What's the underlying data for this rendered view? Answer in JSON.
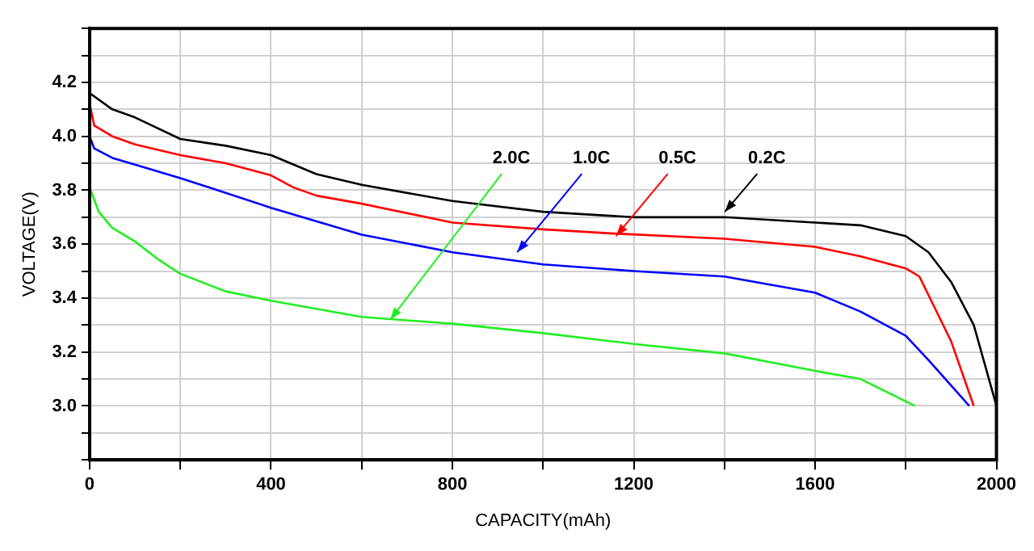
{
  "chart_data": {
    "type": "line",
    "xlabel": "CAPACITY(mAh)",
    "ylabel": "VOLTAGE(V)",
    "xlim": [
      0,
      2000
    ],
    "ylim": [
      2.8,
      4.4
    ],
    "xticks": [
      0,
      {
        "value": 200,
        "label": null
      },
      400,
      {
        "value": 600,
        "label": null
      },
      800,
      {
        "value": 1000,
        "label": null
      },
      1200,
      {
        "value": 1400,
        "label": null
      },
      1600,
      {
        "value": 1800,
        "label": null
      },
      2000
    ],
    "yticks": [
      {
        "value": 2.8,
        "label": null
      },
      {
        "value": 2.9,
        "label": null
      },
      {
        "value": 3.0,
        "label": "3.0"
      },
      {
        "value": 3.1,
        "label": null
      },
      3.2,
      {
        "value": 3.3,
        "label": null
      },
      3.4,
      {
        "value": 3.5,
        "label": null
      },
      3.6,
      {
        "value": 3.7,
        "label": null
      },
      3.8,
      {
        "value": 3.9,
        "label": null
      },
      {
        "value": 4.0,
        "label": "4.0"
      },
      {
        "value": 4.1,
        "label": null
      },
      4.2,
      {
        "value": 4.3,
        "label": null
      },
      {
        "value": 4.4,
        "label": null
      }
    ],
    "grid": true,
    "marker": "none",
    "line_style": "solid",
    "series": [
      {
        "color": "#000000",
        "x": [
          0,
          50,
          100,
          200,
          300,
          400,
          500,
          600,
          800,
          1000,
          1200,
          1400,
          1600,
          1700,
          1800,
          1850,
          1900,
          1950,
          2000
        ],
        "values": [
          4.16,
          4.1,
          4.07,
          3.99,
          3.965,
          3.93,
          3.86,
          3.82,
          3.76,
          3.72,
          3.7,
          3.7,
          3.68,
          3.67,
          3.63,
          3.57,
          3.46,
          3.3,
          3.0
        ]
      },
      {
        "color": "#ff0000",
        "x": [
          0,
          10,
          50,
          100,
          200,
          300,
          400,
          450,
          500,
          600,
          800,
          1000,
          1150,
          1400,
          1600,
          1700,
          1800,
          1830,
          1900,
          1950
        ],
        "values": [
          4.12,
          4.04,
          4.0,
          3.97,
          3.93,
          3.9,
          3.855,
          3.81,
          3.78,
          3.75,
          3.68,
          3.655,
          3.64,
          3.62,
          3.59,
          3.555,
          3.51,
          3.48,
          3.24,
          3.0
        ]
      },
      {
        "color": "#0000ff",
        "x": [
          0,
          10,
          50,
          100,
          200,
          400,
          600,
          800,
          1000,
          1200,
          1400,
          1600,
          1700,
          1800,
          1850,
          1940
        ],
        "values": [
          4.0,
          3.955,
          3.92,
          3.895,
          3.845,
          3.735,
          3.635,
          3.57,
          3.525,
          3.5,
          3.48,
          3.42,
          3.35,
          3.26,
          3.17,
          3.0
        ]
      },
      {
        "color": "#22ee22",
        "x": [
          0,
          20,
          50,
          100,
          150,
          200,
          300,
          400,
          600,
          800,
          1000,
          1200,
          1400,
          1600,
          1700,
          1820
        ],
        "values": [
          3.81,
          3.72,
          3.66,
          3.61,
          3.545,
          3.49,
          3.425,
          3.39,
          3.33,
          3.305,
          3.27,
          3.23,
          3.195,
          3.13,
          3.1,
          3.0
        ]
      }
    ],
    "annotations": [
      {
        "text": "2.0C",
        "x": 663,
        "y": 3.32
      },
      {
        "text": "1.0C",
        "x": 943,
        "y": 3.57
      },
      {
        "text": "0.5C",
        "x": 1161,
        "y": 3.63
      },
      {
        "text": "0.2C",
        "x": 1401,
        "y": 3.72
      }
    ]
  }
}
